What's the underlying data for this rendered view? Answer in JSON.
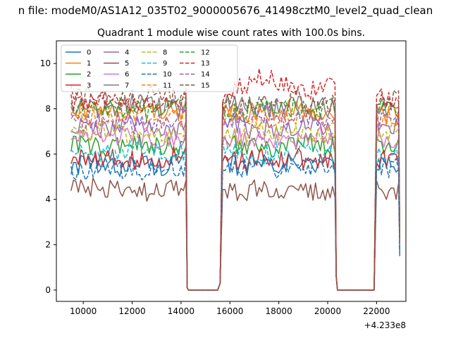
{
  "figure": {
    "suptitle": "n file: modeM0/AS1A12_035T02_9000005676_41498cztM0_level2_quad_clean",
    "offset_label": "+4.233e8"
  },
  "chart_data": {
    "type": "line",
    "title": "Quadrant 1 module wise count rates with 100.0s bins.",
    "xlabel": "",
    "ylabel": "",
    "x_offset": 423300000,
    "xlim": [
      8900,
      23200
    ],
    "ylim": [
      -0.5,
      11.0
    ],
    "x_ticks": [
      10000,
      12000,
      14000,
      16000,
      18000,
      20000,
      22000
    ],
    "x_tick_labels": [
      "10000",
      "12000",
      "14000",
      "16000",
      "18000",
      "20000",
      "22000"
    ],
    "y_ticks": [
      0,
      2,
      4,
      6,
      8,
      10
    ],
    "y_tick_labels": [
      "0",
      "2",
      "4",
      "6",
      "8",
      "10"
    ],
    "grid": false,
    "legend_position": "top-left",
    "legend_columns": 4,
    "segments": [
      {
        "x_start": 9500,
        "x_end": 14200,
        "active": true
      },
      {
        "x_start": 14300,
        "x_end": 15600,
        "active": false
      },
      {
        "x_start": 15700,
        "x_end": 20300,
        "active": true
      },
      {
        "x_start": 20400,
        "x_end": 21900,
        "active": false
      },
      {
        "x_start": 22000,
        "x_end": 22900,
        "active": true
      }
    ],
    "series": [
      {
        "name": "0",
        "color": "#1f77b4",
        "dash": "solid",
        "values": [
          5.5,
          5.4,
          5.6,
          5.5,
          5.7,
          5.6,
          5.5,
          5.7,
          5.6,
          5.5,
          5.6,
          5.5,
          5.5
        ]
      },
      {
        "name": "1",
        "color": "#ff7f0e",
        "dash": "solid",
        "values": [
          7.9,
          7.8,
          7.9,
          8.0,
          7.8,
          7.9,
          7.8,
          7.9,
          8.0,
          7.8,
          7.9,
          7.8,
          7.8
        ]
      },
      {
        "name": "2",
        "color": "#2ca02c",
        "dash": "solid",
        "values": [
          6.4,
          6.3,
          6.5,
          6.4,
          6.3,
          6.5,
          6.4,
          6.3,
          6.4,
          6.5,
          6.4,
          6.3,
          6.3
        ]
      },
      {
        "name": "3",
        "color": "#d62728",
        "dash": "solid",
        "values": [
          5.8,
          5.9,
          5.7,
          5.8,
          5.9,
          5.8,
          5.7,
          5.9,
          5.8,
          5.7,
          5.8,
          5.9,
          5.8
        ]
      },
      {
        "name": "4",
        "color": "#9467bd",
        "dash": "solid",
        "values": [
          7.2,
          7.1,
          7.3,
          7.2,
          7.0,
          7.2,
          7.3,
          7.1,
          7.2,
          7.3,
          7.1,
          7.2,
          7.2
        ]
      },
      {
        "name": "5",
        "color": "#8c564b",
        "dash": "solid",
        "values": [
          4.5,
          4.4,
          4.3,
          4.5,
          4.4,
          4.4,
          4.3,
          4.5,
          4.4,
          4.3,
          4.4,
          4.5,
          4.4
        ]
      },
      {
        "name": "6",
        "color": "#e377c2",
        "dash": "solid",
        "values": [
          6.7,
          6.6,
          6.8,
          6.7,
          6.6,
          6.8,
          6.7,
          6.6,
          6.7,
          6.8,
          6.6,
          6.7,
          6.7
        ]
      },
      {
        "name": "7",
        "color": "#7f7f7f",
        "dash": "solid",
        "values": [
          8.1,
          8.0,
          8.2,
          8.1,
          8.0,
          8.1,
          8.2,
          8.0,
          8.1,
          8.2,
          8.0,
          8.1,
          8.1
        ]
      },
      {
        "name": "8",
        "color": "#bcbd22",
        "dash": "dashed",
        "values": [
          6.9,
          7.0,
          6.8,
          6.9,
          7.0,
          6.9,
          6.8,
          7.0,
          6.9,
          6.8,
          6.9,
          7.0,
          6.9
        ]
      },
      {
        "name": "9",
        "color": "#17becf",
        "dash": "dashed",
        "values": [
          6.1,
          6.0,
          6.2,
          6.1,
          6.0,
          6.2,
          6.1,
          6.0,
          6.1,
          6.2,
          6.0,
          6.1,
          6.1
        ]
      },
      {
        "name": "10",
        "color": "#1f77b4",
        "dash": "dashed",
        "values": [
          5.3,
          5.4,
          5.3,
          5.5,
          5.4,
          5.3,
          5.4,
          5.5,
          5.3,
          5.4,
          5.3,
          5.4,
          5.4
        ]
      },
      {
        "name": "11",
        "color": "#ff7f0e",
        "dash": "dashed",
        "values": [
          7.6,
          7.5,
          7.7,
          7.6,
          7.5,
          7.6,
          7.7,
          7.5,
          7.6,
          7.7,
          7.5,
          7.6,
          7.6
        ]
      },
      {
        "name": "12",
        "color": "#2ca02c",
        "dash": "dashed",
        "values": [
          8.0,
          8.1,
          7.9,
          8.0,
          8.1,
          8.0,
          7.9,
          8.1,
          8.0,
          7.9,
          8.0,
          8.1,
          8.0
        ]
      },
      {
        "name": "13",
        "color": "#d62728",
        "dash": "dashed",
        "values": [
          8.3,
          8.4,
          8.2,
          8.4,
          8.3,
          8.5,
          8.9,
          9.4,
          9.0,
          8.8,
          9.2,
          8.6,
          8.5
        ]
      },
      {
        "name": "14",
        "color": "#9467bd",
        "dash": "dashed",
        "values": [
          7.4,
          7.5,
          7.3,
          7.4,
          7.6,
          7.5,
          7.6,
          7.8,
          7.7,
          7.6,
          7.7,
          7.5,
          7.5
        ]
      },
      {
        "name": "15",
        "color": "#8c564b",
        "dash": "dashed",
        "values": [
          8.6,
          8.5,
          8.4,
          8.6,
          8.5,
          8.3,
          8.2,
          8.3,
          8.4,
          8.2,
          8.3,
          8.4,
          8.4
        ]
      }
    ]
  }
}
